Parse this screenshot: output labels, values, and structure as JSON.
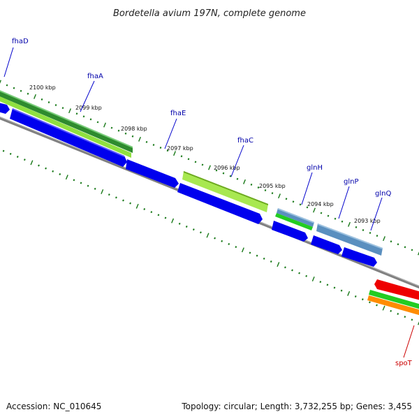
{
  "title": "Bordetella avium 197N, complete genome",
  "footer": {
    "accession": "Accession: NC_010645",
    "summary": "Topology: circular; Length: 3,732,255 bp; Genes: 3,455"
  },
  "colors": {
    "backbone": "#808080",
    "tick": "#1a7a1a",
    "gene_blue": "#0000ee",
    "gene_dark_green": "#2e8b2e",
    "gene_light_green": "#a0e040",
    "gene_steel_blue": "#5a8fbf",
    "gene_bright_green": "#22cc22",
    "gene_red": "#ee0000",
    "gene_orange": "#ff8c00",
    "label_blue": "#0000aa",
    "label_red": "#cc0000"
  },
  "ticks": [
    "2100 kbp",
    "2099 kbp",
    "2098 kbp",
    "2097 kbp",
    "2096 kbp",
    "2095 kbp",
    "2094 kbp",
    "2093 kbp"
  ],
  "genes": [
    {
      "name": "fhaD",
      "label_color": "label_blue"
    },
    {
      "name": "fhaA",
      "label_color": "label_blue"
    },
    {
      "name": "fhaE",
      "label_color": "label_blue"
    },
    {
      "name": "fhaC",
      "label_color": "label_blue"
    },
    {
      "name": "glnH",
      "label_color": "label_blue"
    },
    {
      "name": "glnP",
      "label_color": "label_blue"
    },
    {
      "name": "glnQ",
      "label_color": "label_blue"
    },
    {
      "name": "spoT",
      "label_color": "label_red"
    }
  ]
}
